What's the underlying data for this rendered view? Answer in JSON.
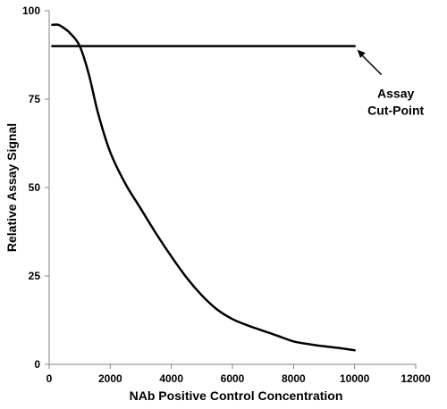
{
  "chart_data": {
    "type": "line",
    "title": "",
    "xlabel": "NAb Positive Control Concentration",
    "ylabel": "Relative Assay Signal",
    "xlim": [
      0,
      12000
    ],
    "ylim": [
      0,
      100
    ],
    "x_ticks": [
      "0",
      "2000",
      "4000",
      "6000",
      "8000",
      "10000",
      "12000"
    ],
    "y_ticks": [
      "0",
      "25",
      "50",
      "75",
      "100"
    ],
    "grid": false,
    "legend": "none",
    "series": [
      {
        "x": [
          100,
          300,
          500,
          700,
          1000,
          1300,
          1600,
          2000,
          2500,
          3000,
          3500,
          4000,
          4500,
          5000,
          5500,
          6000,
          6500,
          7000,
          7500,
          8000,
          8500,
          9000,
          9500,
          10000
        ],
        "y": [
          96,
          96,
          95,
          93.5,
          90,
          82,
          71,
          60,
          51,
          44,
          37,
          30.5,
          24.5,
          19.5,
          15.5,
          12.8,
          11,
          9.5,
          8,
          6.5,
          5.7,
          5.1,
          4.6,
          4
        ],
        "color": "#000000"
      },
      {
        "x": [
          100,
          10000
        ],
        "y": [
          90,
          90
        ],
        "color": "#000000"
      }
    ],
    "annotations": [
      {
        "text_lines": [
          "Assay",
          "Cut-Point"
        ],
        "points_to": [
          10000,
          90
        ]
      }
    ]
  }
}
